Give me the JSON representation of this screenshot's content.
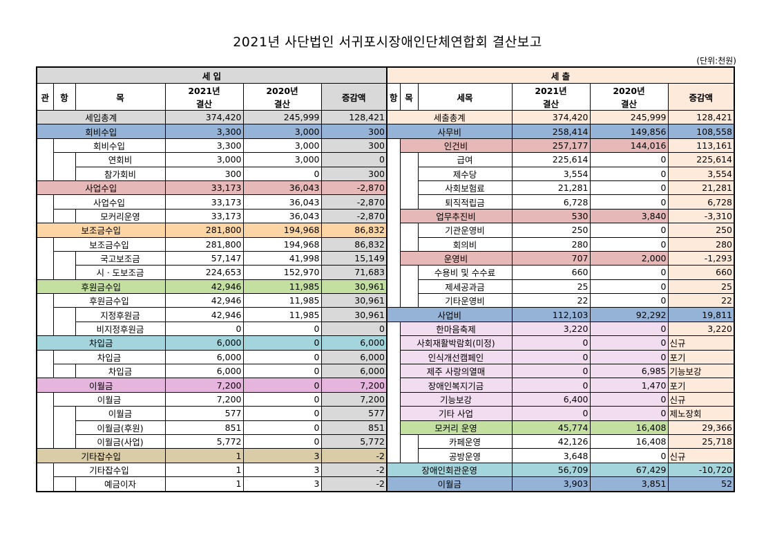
{
  "title": "2021년 사단법인 서귀포시장애인단체연합회 결산보고",
  "unit": "(단위:천원)",
  "income": {
    "header": "세 입",
    "col_gwan": "관",
    "col_hang": "항",
    "col_mok": "목",
    "col_2021": "2021년\n결산",
    "col_2020": "2020년\n결산",
    "col_diff": "증감액",
    "rows": [
      {
        "level": 0,
        "name": "세입총계",
        "v2021": "374,420",
        "v2020": "245,999",
        "diff": "128,421"
      },
      {
        "level": 1,
        "name": "회비수입",
        "v2021": "3,300",
        "v2020": "3,000",
        "diff": "300",
        "color": "#95b3d7"
      },
      {
        "level": 2,
        "name": "회비수입",
        "v2021": "3,300",
        "v2020": "3,000",
        "diff": "300"
      },
      {
        "level": 3,
        "name": "연회비",
        "v2021": "3,000",
        "v2020": "3,000",
        "diff": "0"
      },
      {
        "level": 3,
        "name": "참가회비",
        "v2021": "300",
        "v2020": "0",
        "diff": "300"
      },
      {
        "level": 1,
        "name": "사업수입",
        "v2021": "33,173",
        "v2020": "36,043",
        "diff": "-2,870",
        "color": "#e6b8b7"
      },
      {
        "level": 2,
        "name": "사업수입",
        "v2021": "33,173",
        "v2020": "36,043",
        "diff": "-2,870"
      },
      {
        "level": 3,
        "name": "모커리운영",
        "v2021": "33,173",
        "v2020": "36,043",
        "diff": "-2,870"
      },
      {
        "level": 1,
        "name": "보조금수입",
        "v2021": "281,800",
        "v2020": "194,968",
        "diff": "86,832",
        "color": "#fcd5a4"
      },
      {
        "level": 2,
        "name": "보조금수입",
        "v2021": "281,800",
        "v2020": "194,968",
        "diff": "86,832"
      },
      {
        "level": 3,
        "name": "국고보조금",
        "v2021": "57,147",
        "v2020": "41,998",
        "diff": "15,149"
      },
      {
        "level": 3,
        "name": "시ㆍ도보조금",
        "v2021": "224,653",
        "v2020": "152,970",
        "diff": "71,683"
      },
      {
        "level": 1,
        "name": "후원금수입",
        "v2021": "42,946",
        "v2020": "11,985",
        "diff": "30,961",
        "color": "#c4e0a0"
      },
      {
        "level": 2,
        "name": "후원금수입",
        "v2021": "42,946",
        "v2020": "11,985",
        "diff": "30,961"
      },
      {
        "level": 3,
        "name": "지정후원금",
        "v2021": "42,946",
        "v2020": "11,985",
        "diff": "30,961"
      },
      {
        "level": 3,
        "name": "비지정후원금",
        "v2021": "0",
        "v2020": "0",
        "diff": "0"
      },
      {
        "level": 1,
        "name": "차입금",
        "v2021": "6,000",
        "v2020": "0",
        "diff": "6,000",
        "color": "#a4d4dc"
      },
      {
        "level": 2,
        "name": "차입금",
        "v2021": "6,000",
        "v2020": "0",
        "diff": "6,000"
      },
      {
        "level": 3,
        "name": "차입금",
        "v2021": "6,000",
        "v2020": "0",
        "diff": "6,000"
      },
      {
        "level": 1,
        "name": "이월금",
        "v2021": "7,200",
        "v2020": "0",
        "diff": "7,200",
        "color": "#e6b5de"
      },
      {
        "level": 2,
        "name": "이월금",
        "v2021": "7,200",
        "v2020": "0",
        "diff": "7,200"
      },
      {
        "level": 3,
        "name": "이월금",
        "v2021": "577",
        "v2020": "0",
        "diff": "577"
      },
      {
        "level": 3,
        "name": "이월금(후원)",
        "v2021": "851",
        "v2020": "0",
        "diff": "851"
      },
      {
        "level": 3,
        "name": "이월금(사업)",
        "v2021": "5,772",
        "v2020": "0",
        "diff": "5,772"
      },
      {
        "level": 1,
        "name": "기타잡수입",
        "v2021": "1",
        "v2020": "3",
        "diff": "-2",
        "color": "#d9cca6"
      },
      {
        "level": 2,
        "name": "기타잡수입",
        "v2021": "1",
        "v2020": "3",
        "diff": "-2"
      },
      {
        "level": 3,
        "name": "예금이자",
        "v2021": "1",
        "v2020": "3",
        "diff": "-2"
      }
    ]
  },
  "expense": {
    "header": "세 출",
    "col_hang": "항",
    "col_mok": "목",
    "col_semok": "세목",
    "col_2021": "2021년\n결산",
    "col_2020": "2020년\n결산",
    "col_diff": "증감액",
    "rows": [
      {
        "level": 0,
        "name": "세출총계",
        "v2021": "374,420",
        "v2020": "245,999",
        "diff": "128,421"
      },
      {
        "level": 1,
        "name": "사무비",
        "v2021": "258,414",
        "v2020": "149,856",
        "diff": "108,558",
        "color": "#95b3d7"
      },
      {
        "level": 2,
        "name": "인건비",
        "v2021": "257,177",
        "v2020": "144,016",
        "diff": "113,161",
        "color": "#e6b8b7"
      },
      {
        "level": 3,
        "name": "급여",
        "v2021": "225,614",
        "v2020": "0",
        "diff": "225,614"
      },
      {
        "level": 3,
        "name": "제수당",
        "v2021": "3,554",
        "v2020": "0",
        "diff": "3,554"
      },
      {
        "level": 3,
        "name": "사회보험료",
        "v2021": "21,281",
        "v2020": "0",
        "diff": "21,281"
      },
      {
        "level": 3,
        "name": "퇴직적립금",
        "v2021": "6,728",
        "v2020": "0",
        "diff": "6,728"
      },
      {
        "level": 2,
        "name": "업무추진비",
        "v2021": "530",
        "v2020": "3,840",
        "diff": "-3,310",
        "color": "#e6b8b7"
      },
      {
        "level": 3,
        "name": "기관운영비",
        "v2021": "250",
        "v2020": "0",
        "diff": "250"
      },
      {
        "level": 3,
        "name": "회의비",
        "v2021": "280",
        "v2020": "0",
        "diff": "280"
      },
      {
        "level": 2,
        "name": "운영비",
        "v2021": "707",
        "v2020": "2,000",
        "diff": "-1,293",
        "color": "#e6b8b7"
      },
      {
        "level": 3,
        "name": "수용비 및 수수료",
        "v2021": "660",
        "v2020": "0",
        "diff": "660"
      },
      {
        "level": 3,
        "name": "제세공과금",
        "v2021": "25",
        "v2020": "0",
        "diff": "25"
      },
      {
        "level": 3,
        "name": "기타운영비",
        "v2021": "22",
        "v2020": "0",
        "diff": "22"
      },
      {
        "level": 1,
        "name": "사업비",
        "v2021": "112,103",
        "v2020": "92,292",
        "diff": "19,811",
        "color": "#95b3d7"
      },
      {
        "level": 2,
        "name": "한마음축제",
        "v2021": "3,220",
        "v2020": "0",
        "diff": "3,220",
        "color": "#f2dcef"
      },
      {
        "level": 2,
        "name": "사회재활박람회(미정)",
        "v2021": "0",
        "v2020": "0",
        "diff": "신규",
        "color": "#f2dcef"
      },
      {
        "level": 2,
        "name": "인식개선캠페인",
        "v2021": "0",
        "v2020": "0",
        "diff": "포기",
        "color": "#f2dcef"
      },
      {
        "level": 2,
        "name": "제주 사랑의열매",
        "v2021": "0",
        "v2020": "6,985",
        "diff": "기능보강",
        "color": "#f2dcef"
      },
      {
        "level": 2,
        "name": "장애인복지기금",
        "v2021": "0",
        "v2020": "1,470",
        "diff": "포기",
        "color": "#f2dcef"
      },
      {
        "level": 2,
        "name": "기능보강",
        "v2021": "6,400",
        "v2020": "0",
        "diff": "신규",
        "color": "#f2dcef"
      },
      {
        "level": 2,
        "name": "기타 사업",
        "v2021": "0",
        "v2020": "0",
        "diff": "제노장회",
        "color": "#f2dcef"
      },
      {
        "level": 2,
        "name": "모커리 운영",
        "v2021": "45,774",
        "v2020": "16,408",
        "diff": "29,366",
        "color": "#c4e0a0"
      },
      {
        "level": 3,
        "name": "카페운영",
        "v2021": "42,126",
        "v2020": "16,408",
        "diff": "25,718"
      },
      {
        "level": 3,
        "name": "공방운영",
        "v2021": "3,648",
        "v2020": "0",
        "diff": "신규"
      },
      {
        "level": 1,
        "name": "장애인회관운영",
        "v2021": "56,709",
        "v2020": "67,429",
        "diff": "-10,720",
        "color": "#a4d4dc"
      },
      {
        "level": 1,
        "name": "이월금",
        "v2021": "3,903",
        "v2020": "3,851",
        "diff": "52",
        "color": "#95b3d7"
      }
    ]
  },
  "colors": {
    "income_header": "#d9d9d9",
    "expense_header": "#fdeada",
    "diff_col_income": "#d9d9d9",
    "diff_col_expense": "#fdeada"
  }
}
